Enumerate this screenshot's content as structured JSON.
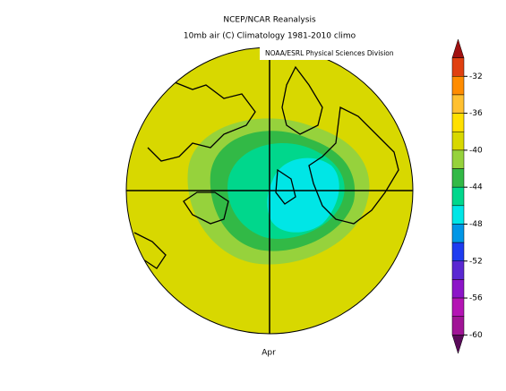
{
  "header": {
    "title": "NCEP/NCAR Reanalysis",
    "subtitle": "10mb air (C) Climatology 1981-2010 climo"
  },
  "attribution": "NOAA/ESRL Physical Sciences Division",
  "period": "Apr",
  "colorbar": {
    "ticks": [
      -32,
      -36,
      -40,
      -44,
      -48,
      -52,
      -56,
      -60
    ],
    "colors": [
      "#a01010",
      "#e04010",
      "#ff8c00",
      "#ffc030",
      "#ffe000",
      "#d8d800",
      "#96d23c",
      "#32b946",
      "#00d78c",
      "#00e6e6",
      "#0096e6",
      "#1e3cf0",
      "#5a28d2",
      "#8c14c8",
      "#b414b4",
      "#a01496",
      "#5a0a5a"
    ]
  }
}
